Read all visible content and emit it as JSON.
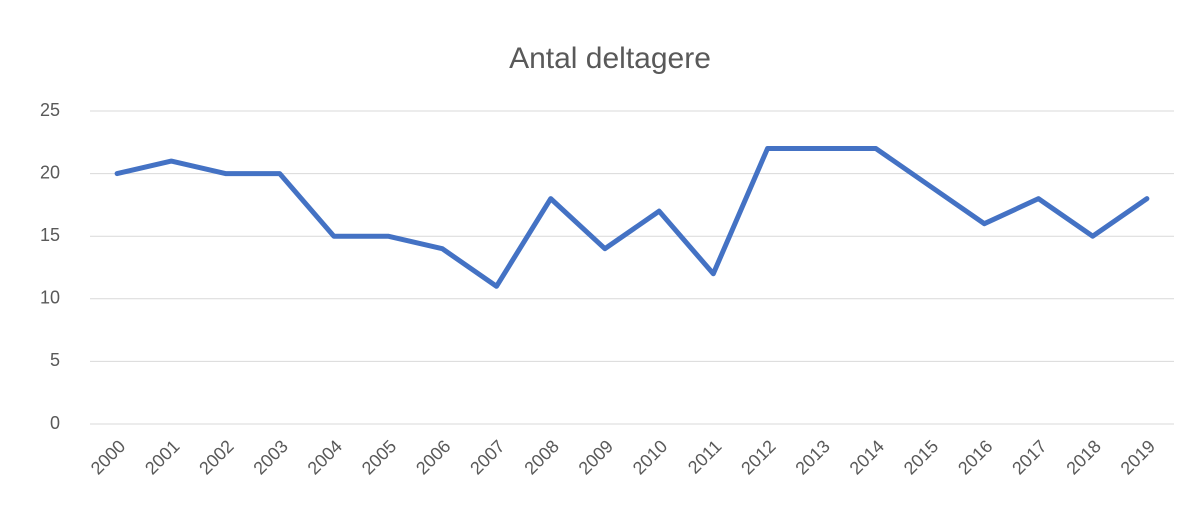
{
  "chart_data": {
    "type": "line",
    "title": "Antal deltagere",
    "categories": [
      "2000",
      "2001",
      "2002",
      "2003",
      "2004",
      "2005",
      "2006",
      "2007",
      "2008",
      "2009",
      "2010",
      "2011",
      "2012",
      "2013",
      "2014",
      "2015",
      "2016",
      "2017",
      "2018",
      "2019"
    ],
    "series": [
      {
        "name": "Antal deltagere",
        "color": "#4472c4",
        "values": [
          20,
          21,
          20,
          20,
          15,
          15,
          14,
          11,
          18,
          14,
          17,
          12,
          22,
          22,
          22,
          19,
          16,
          18,
          15,
          18
        ]
      }
    ],
    "ylim": [
      0,
      25
    ],
    "yticks": [
      0,
      5,
      10,
      15,
      20,
      25
    ],
    "grid": true
  }
}
